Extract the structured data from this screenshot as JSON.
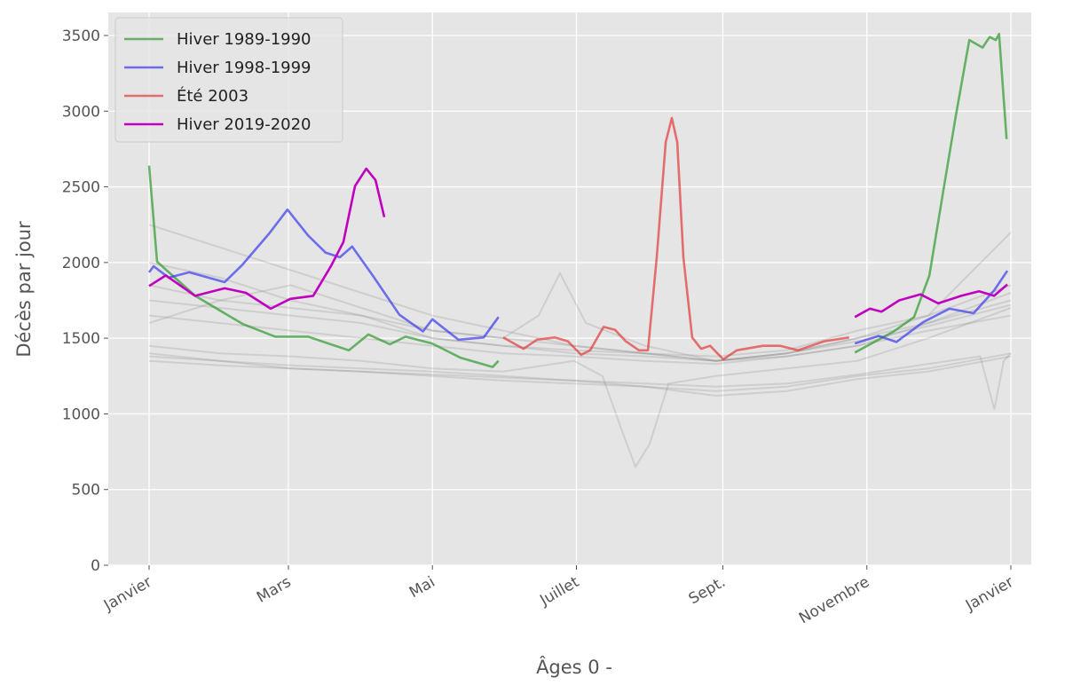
{
  "chart_data": {
    "type": "line",
    "title": "",
    "xlabel": "Âges 0 -",
    "ylabel": "Décès par jour",
    "xlim_days": [
      -17,
      374
    ],
    "ylim": [
      0,
      3650
    ],
    "grid": true,
    "legend_position": "top-left",
    "x_ticks": [
      {
        "day": 0,
        "label": "Janvier"
      },
      {
        "day": 59,
        "label": "Mars"
      },
      {
        "day": 120,
        "label": "Mai"
      },
      {
        "day": 181,
        "label": "Juillet"
      },
      {
        "day": 243,
        "label": "Sept."
      },
      {
        "day": 304,
        "label": "Novembre"
      },
      {
        "day": 365,
        "label": "Janvier"
      }
    ],
    "y_ticks": [
      0,
      500,
      1000,
      1500,
      2000,
      2500,
      3000,
      3500
    ],
    "series": [
      {
        "name": "Hiver 1989-1990",
        "color": "#2e9a2e",
        "opacity": 0.7,
        "segments": [
          {
            "x": [
              0,
              3.4,
              19.5,
              39.5,
              53.4,
              67.3,
              84.6,
              92.9,
              102,
              108.6,
              119.9,
              132,
              145.5,
              148
            ],
            "y": [
              2640,
              2005,
              1780,
              1595,
              1510,
              1510,
              1420,
              1525,
              1460,
              1510,
              1465,
              1370,
              1310,
              1350
            ]
          },
          {
            "x": [
              298.9,
              315.4,
              324,
              330.5,
              336.5,
              341.7,
              347.4,
              353,
              356,
              358.6,
              360,
              363.2
            ],
            "y": [
              1405,
              1545,
              1640,
              1915,
              2485,
              2970,
              3470,
              3420,
              3490,
              3470,
              3510,
              2815
            ]
          }
        ]
      },
      {
        "name": "Hiver 1998-1999",
        "color": "#3b3bee",
        "opacity": 0.7,
        "segments": [
          {
            "x": [
              0,
              1.9,
              8.3,
              17,
              32,
              39.5,
              50.8,
              58.6,
              67.3,
              74.8,
              80.8,
              86,
              94.7,
              106,
              116,
              120,
              131,
              141.7,
              148
            ],
            "y": [
              1935,
              1975,
              1900,
              1935,
              1870,
              1985,
              2190,
              2350,
              2180,
              2065,
              2035,
              2105,
              1915,
              1655,
              1545,
              1625,
              1490,
              1505,
              1640
            ]
          },
          {
            "x": [
              298.9,
              309,
              316.5,
              327.8,
              339,
              349.2,
              357.9,
              363.5
            ],
            "y": [
              1465,
              1515,
              1475,
              1605,
              1695,
              1665,
              1815,
              1945
            ]
          }
        ]
      },
      {
        "name": "Été 2003",
        "color": "#e33b3b",
        "opacity": 0.7,
        "segments": [
          {
            "x": [
              150,
              158.6,
              164.3,
              171.8,
              177.4,
              183,
              186.8,
              192.5,
              197.4,
              201.9,
              207.5,
              211.3,
              215,
              218.8,
              221.4,
              223.7,
              226.3,
              230,
              233.8,
              237.6,
              243.2,
              248.9,
              260,
              267.3,
              274.8,
              286,
              296.5
            ],
            "y": [
              1505,
              1430,
              1490,
              1505,
              1480,
              1390,
              1420,
              1575,
              1555,
              1480,
              1420,
              1420,
              2035,
              2795,
              2955,
              2795,
              2035,
              1505,
              1430,
              1450,
              1360,
              1420,
              1450,
              1450,
              1420,
              1480,
              1505
            ]
          }
        ]
      },
      {
        "name": "Hiver 2019-2020",
        "color": "#bf00bf",
        "opacity": 1,
        "segments": [
          {
            "x": [
              0,
              7.1,
              19.5,
              32,
              41,
              51.5,
              59.8,
              69.5,
              77,
              82.3,
              87.2,
              92,
              95.9,
              99.6
            ],
            "y": [
              1845,
              1915,
              1780,
              1830,
              1800,
              1695,
              1760,
              1780,
              1975,
              2135,
              2505,
              2620,
              2545,
              2300
            ]
          },
          {
            "x": [
              298.9,
              305.3,
              310.2,
              317.7,
              326.7,
              334.2,
              344,
              351.5,
              357.9,
              363.5
            ],
            "y": [
              1640,
              1695,
              1675,
              1750,
              1790,
              1730,
              1780,
              1810,
              1780,
              1855
            ]
          }
        ]
      }
    ],
    "background_years": {
      "color": "#808080",
      "opacity": 0.22,
      "series": [
        {
          "x": [
            0,
            30,
            60,
            90,
            120,
            150,
            180,
            210,
            240,
            270,
            300,
            330,
            365
          ],
          "y": [
            2250,
            2100,
            1950,
            1800,
            1650,
            1550,
            1450,
            1400,
            1350,
            1400,
            1500,
            1650,
            2200
          ]
        },
        {
          "x": [
            0,
            30,
            60,
            90,
            120,
            150,
            180,
            210,
            240,
            270,
            300,
            330,
            365
          ],
          "y": [
            1850,
            1750,
            1700,
            1650,
            1550,
            1500,
            1450,
            1400,
            1380,
            1420,
            1550,
            1650,
            1850
          ]
        },
        {
          "x": [
            0,
            30,
            60,
            90,
            120,
            150,
            180,
            210,
            240,
            270,
            300,
            330,
            365
          ],
          "y": [
            1750,
            1700,
            1650,
            1600,
            1500,
            1450,
            1400,
            1380,
            1350,
            1400,
            1500,
            1600,
            1750
          ]
        },
        {
          "x": [
            0,
            30,
            60,
            90,
            120,
            150,
            180,
            210,
            240,
            270,
            300,
            330,
            365
          ],
          "y": [
            1650,
            1600,
            1550,
            1500,
            1450,
            1400,
            1380,
            1350,
            1330,
            1380,
            1450,
            1550,
            1650
          ]
        },
        {
          "x": [
            0,
            30,
            60,
            90,
            120,
            150,
            165,
            174,
            185,
            210,
            240,
            270,
            300,
            330,
            365
          ],
          "y": [
            1600,
            1750,
            1850,
            1700,
            1550,
            1500,
            1650,
            1930,
            1600,
            1450,
            1350,
            1380,
            1450,
            1600,
            1800
          ]
        },
        {
          "x": [
            0,
            30,
            60,
            90,
            120,
            150,
            180,
            210,
            240,
            270,
            300,
            330,
            365
          ],
          "y": [
            1400,
            1350,
            1320,
            1300,
            1280,
            1250,
            1220,
            1180,
            1150,
            1180,
            1250,
            1300,
            1400
          ]
        },
        {
          "x": [
            0,
            30,
            60,
            90,
            120,
            150,
            180,
            210,
            240,
            270,
            300,
            330,
            365
          ],
          "y": [
            1350,
            1320,
            1300,
            1280,
            1250,
            1220,
            1200,
            1180,
            1120,
            1150,
            1230,
            1280,
            1380
          ]
        },
        {
          "x": [
            0,
            30,
            60,
            90,
            120,
            150,
            180,
            192,
            200,
            206,
            212,
            220,
            240,
            270,
            300,
            330,
            365
          ],
          "y": [
            1450,
            1400,
            1380,
            1350,
            1300,
            1280,
            1350,
            1250,
            900,
            650,
            800,
            1200,
            1250,
            1300,
            1350,
            1500,
            1700
          ]
        },
        {
          "x": [
            0,
            30,
            60,
            90,
            120,
            150,
            180,
            210,
            240,
            270,
            300,
            330,
            352,
            358,
            362,
            365
          ],
          "y": [
            1380,
            1350,
            1300,
            1280,
            1260,
            1240,
            1220,
            1200,
            1180,
            1200,
            1260,
            1330,
            1380,
            1030,
            1350,
            1400
          ]
        },
        {
          "x": [
            0,
            30,
            60,
            90,
            120,
            150,
            180,
            210,
            240,
            270,
            300,
            330,
            365
          ],
          "y": [
            2000,
            1900,
            1750,
            1650,
            1500,
            1450,
            1420,
            1400,
            1350,
            1400,
            1480,
            1580,
            1720
          ]
        }
      ]
    }
  }
}
